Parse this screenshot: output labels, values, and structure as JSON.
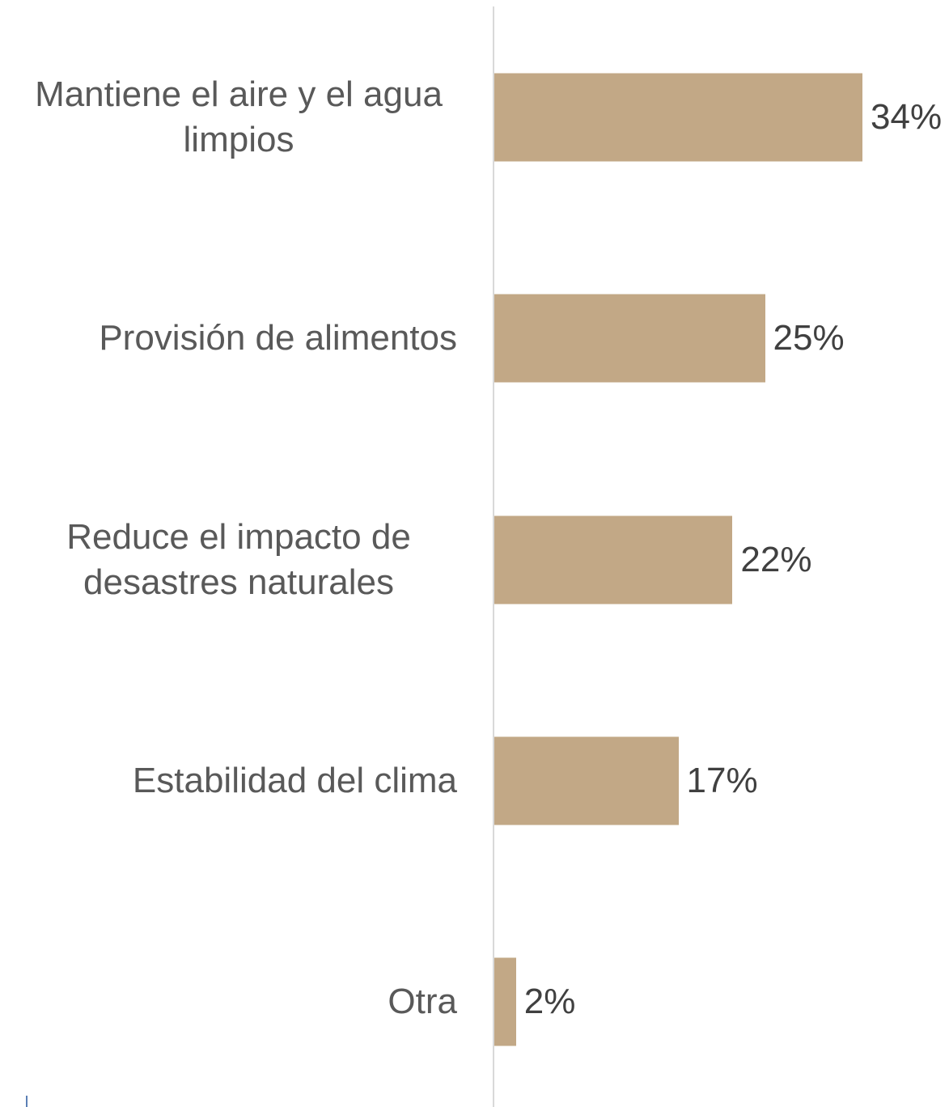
{
  "chart_data": {
    "type": "bar",
    "orientation": "horizontal",
    "categories": [
      "Mantiene el aire y el agua limpios",
      "Provisión de alimentos",
      "Reduce el impacto de desastres naturales",
      "Estabilidad del clima",
      "Otra"
    ],
    "values": [
      34,
      25,
      22,
      17,
      2
    ],
    "value_labels": [
      "34%",
      "25%",
      "22%",
      "17%",
      "2%"
    ],
    "color": "#c2a886"
  }
}
